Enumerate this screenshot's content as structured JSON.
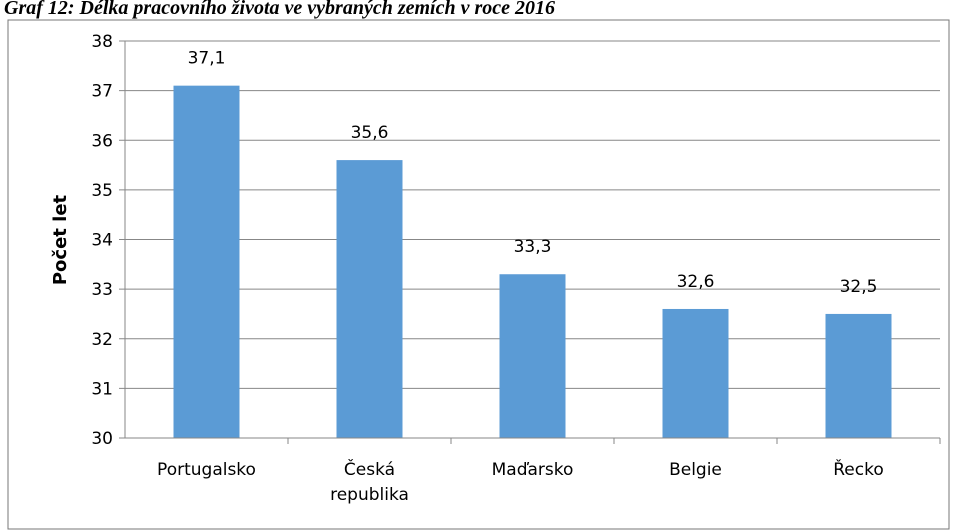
{
  "chart_data": {
    "type": "bar",
    "title": "Graf 12: Délka pracovního života ve vybraných zemích v roce 2016",
    "y_label": "Počet let",
    "categories": [
      "Portugalsko",
      "Česká republika",
      "Maďarsko",
      "Belgie",
      "Řecko"
    ],
    "values": [
      37.1,
      35.6,
      33.3,
      32.6,
      32.5
    ],
    "value_labels": [
      "37,1",
      "35,6",
      "33,3",
      "32,6",
      "32,5"
    ],
    "color": "#5b9bd5",
    "ylim": [
      30,
      38
    ],
    "yticks": [
      30,
      31,
      32,
      33,
      34,
      35,
      36,
      37,
      38
    ],
    "grid": true
  }
}
